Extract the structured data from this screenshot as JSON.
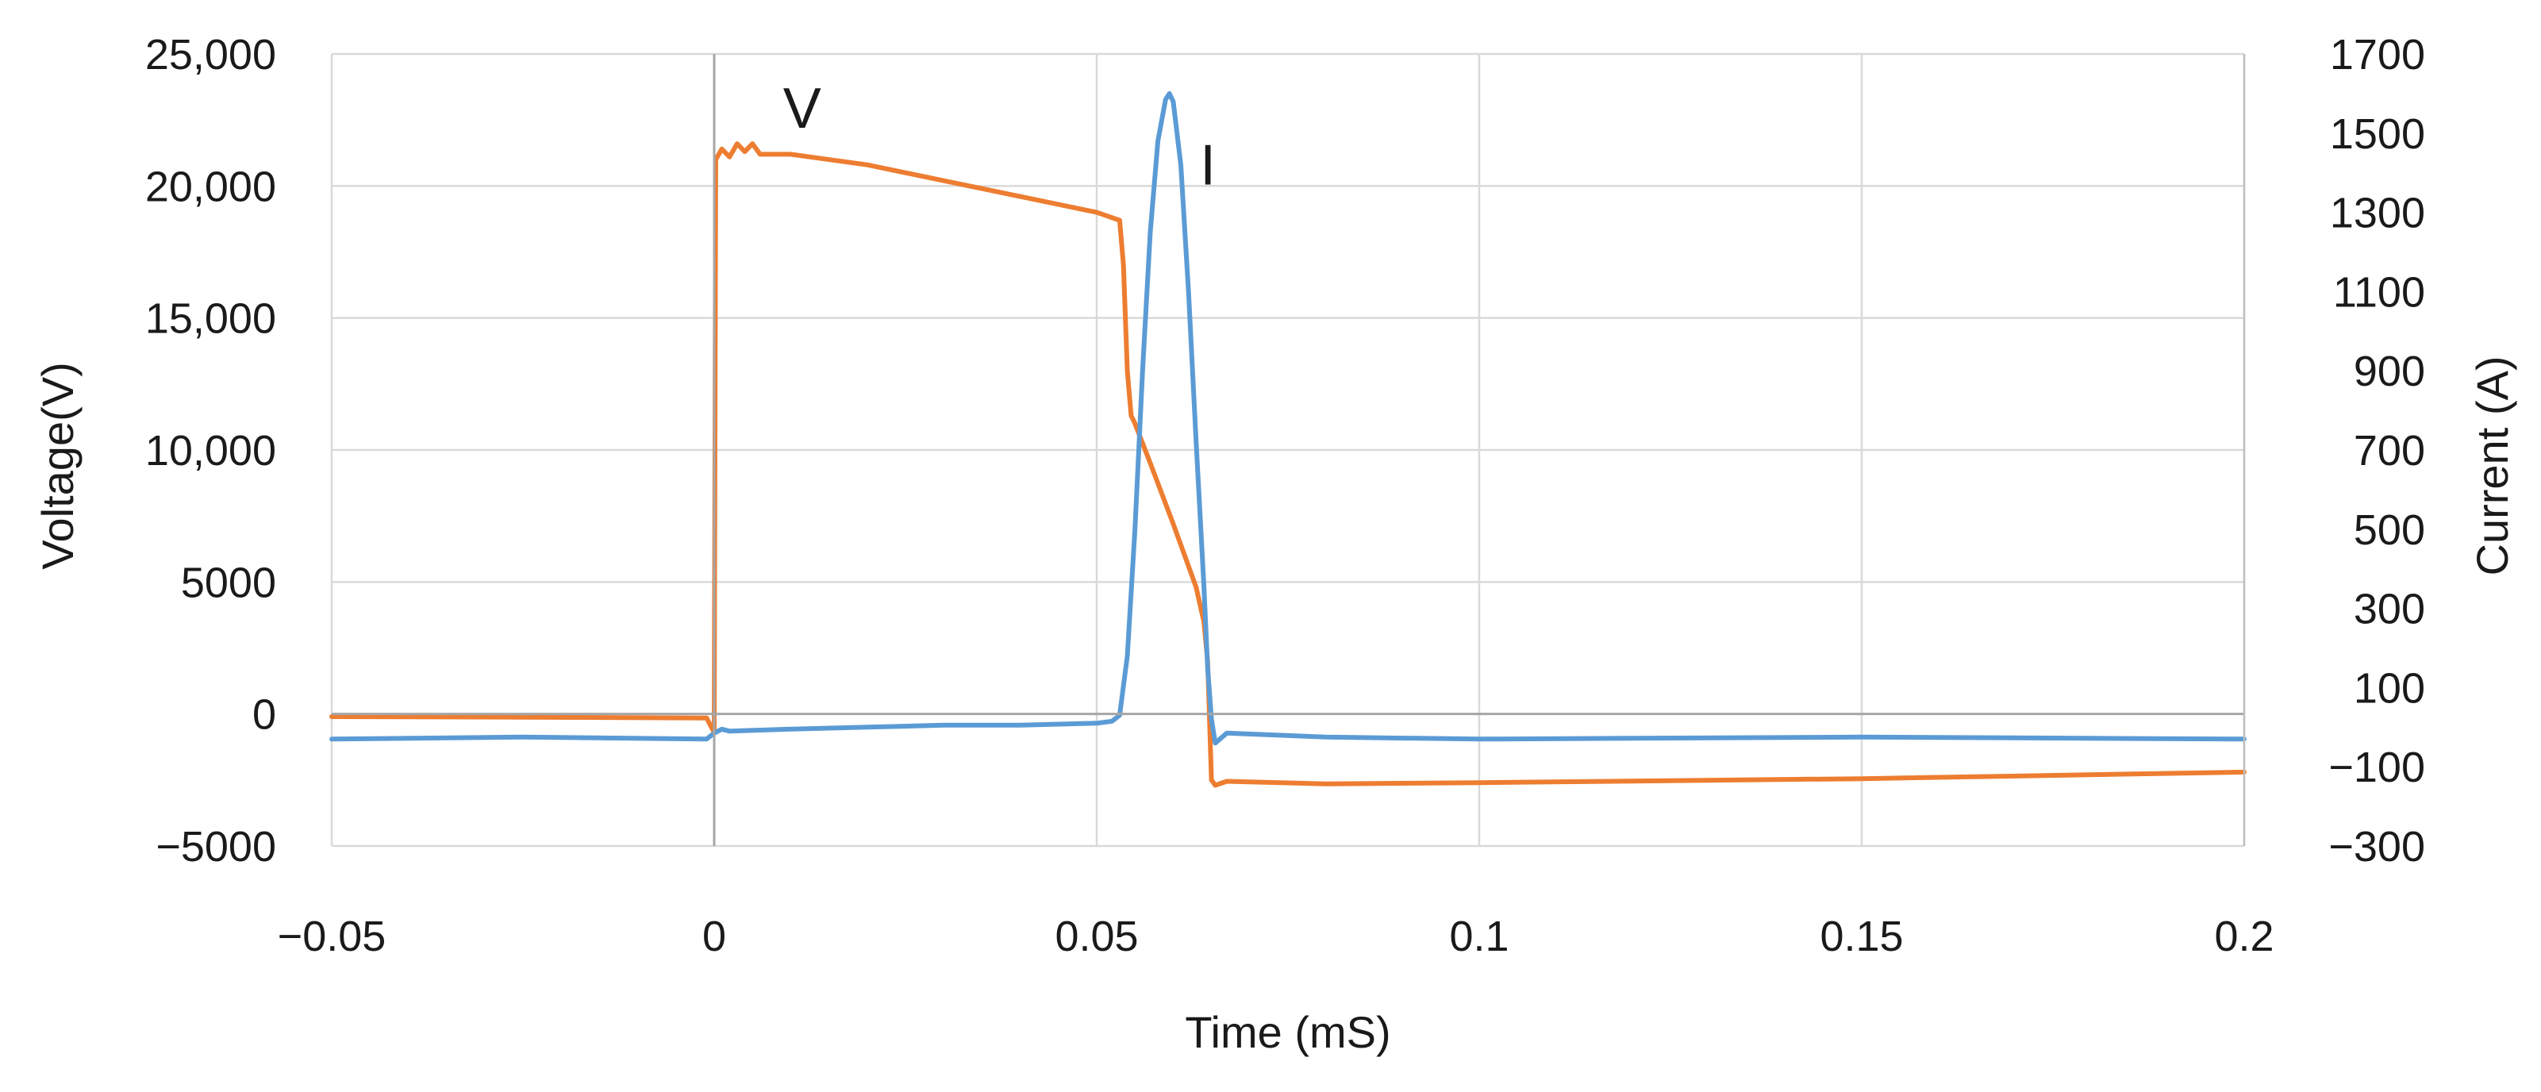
{
  "chart_data": {
    "type": "line",
    "title": "",
    "xlabel": "Time (mS)",
    "ylabel": "Voltage(V)",
    "y2label": "Current (A)",
    "xlim": [
      -0.05,
      0.2
    ],
    "ylim": [
      -5000,
      25000
    ],
    "y2lim": [
      -300,
      1700
    ],
    "grid": true,
    "x_ticks": [
      -0.05,
      0,
      0.05,
      0.1,
      0.15,
      0.2
    ],
    "x_tick_labels": [
      "−0.05",
      "0",
      "0.05",
      "0.1",
      "0.15",
      "0.2"
    ],
    "y_ticks": [
      -5000,
      0,
      5000,
      10000,
      15000,
      20000,
      25000
    ],
    "y_tick_labels": [
      "−5000",
      "0",
      "5000",
      "10,000",
      "15,000",
      "20,000",
      "25,000"
    ],
    "y2_ticks": [
      -300,
      -100,
      100,
      300,
      500,
      700,
      900,
      1100,
      1300,
      1500,
      1700
    ],
    "y2_tick_labels": [
      "−300",
      "−100",
      "100",
      "300",
      "500",
      "700",
      "900",
      "1100",
      "1300",
      "1500",
      "1700"
    ],
    "series": [
      {
        "name": "V",
        "axis": "left",
        "color": "#ED7D31",
        "x": [
          -0.05,
          -0.025,
          -0.001,
          0.0,
          0.0002,
          0.001,
          0.002,
          0.003,
          0.004,
          0.005,
          0.006,
          0.01,
          0.02,
          0.03,
          0.04,
          0.05,
          0.053,
          0.0535,
          0.054,
          0.0545,
          0.055,
          0.057,
          0.06,
          0.062,
          0.063,
          0.064,
          0.0645,
          0.065,
          0.0655,
          0.067,
          0.08,
          0.1,
          0.15,
          0.2
        ],
        "y": [
          -100,
          -120,
          -150,
          -700,
          21000,
          21400,
          21100,
          21600,
          21300,
          21600,
          21200,
          21200,
          20800,
          20200,
          19600,
          19000,
          18700,
          17000,
          13000,
          11300,
          11000,
          9500,
          7200,
          5600,
          4800,
          3500,
          2000,
          -2500,
          -2700,
          -2550,
          -2650,
          -2600,
          -2450,
          -2200
        ]
      },
      {
        "name": "I",
        "axis": "right",
        "color": "#5B9BD5",
        "x": [
          -0.05,
          -0.025,
          -0.001,
          0.0,
          0.001,
          0.002,
          0.01,
          0.02,
          0.03,
          0.04,
          0.05,
          0.052,
          0.053,
          0.054,
          0.055,
          0.056,
          0.057,
          0.058,
          0.059,
          0.0595,
          0.06,
          0.061,
          0.062,
          0.063,
          0.064,
          0.0645,
          0.065,
          0.0655,
          0.067,
          0.08,
          0.1,
          0.15,
          0.2
        ],
        "y": [
          -30,
          -25,
          -30,
          -15,
          -5,
          -10,
          -5,
          0,
          5,
          5,
          10,
          15,
          30,
          180,
          500,
          900,
          1250,
          1480,
          1585,
          1600,
          1580,
          1420,
          1100,
          720,
          360,
          150,
          20,
          -40,
          -15,
          -25,
          -30,
          -25,
          -30
        ]
      }
    ]
  }
}
